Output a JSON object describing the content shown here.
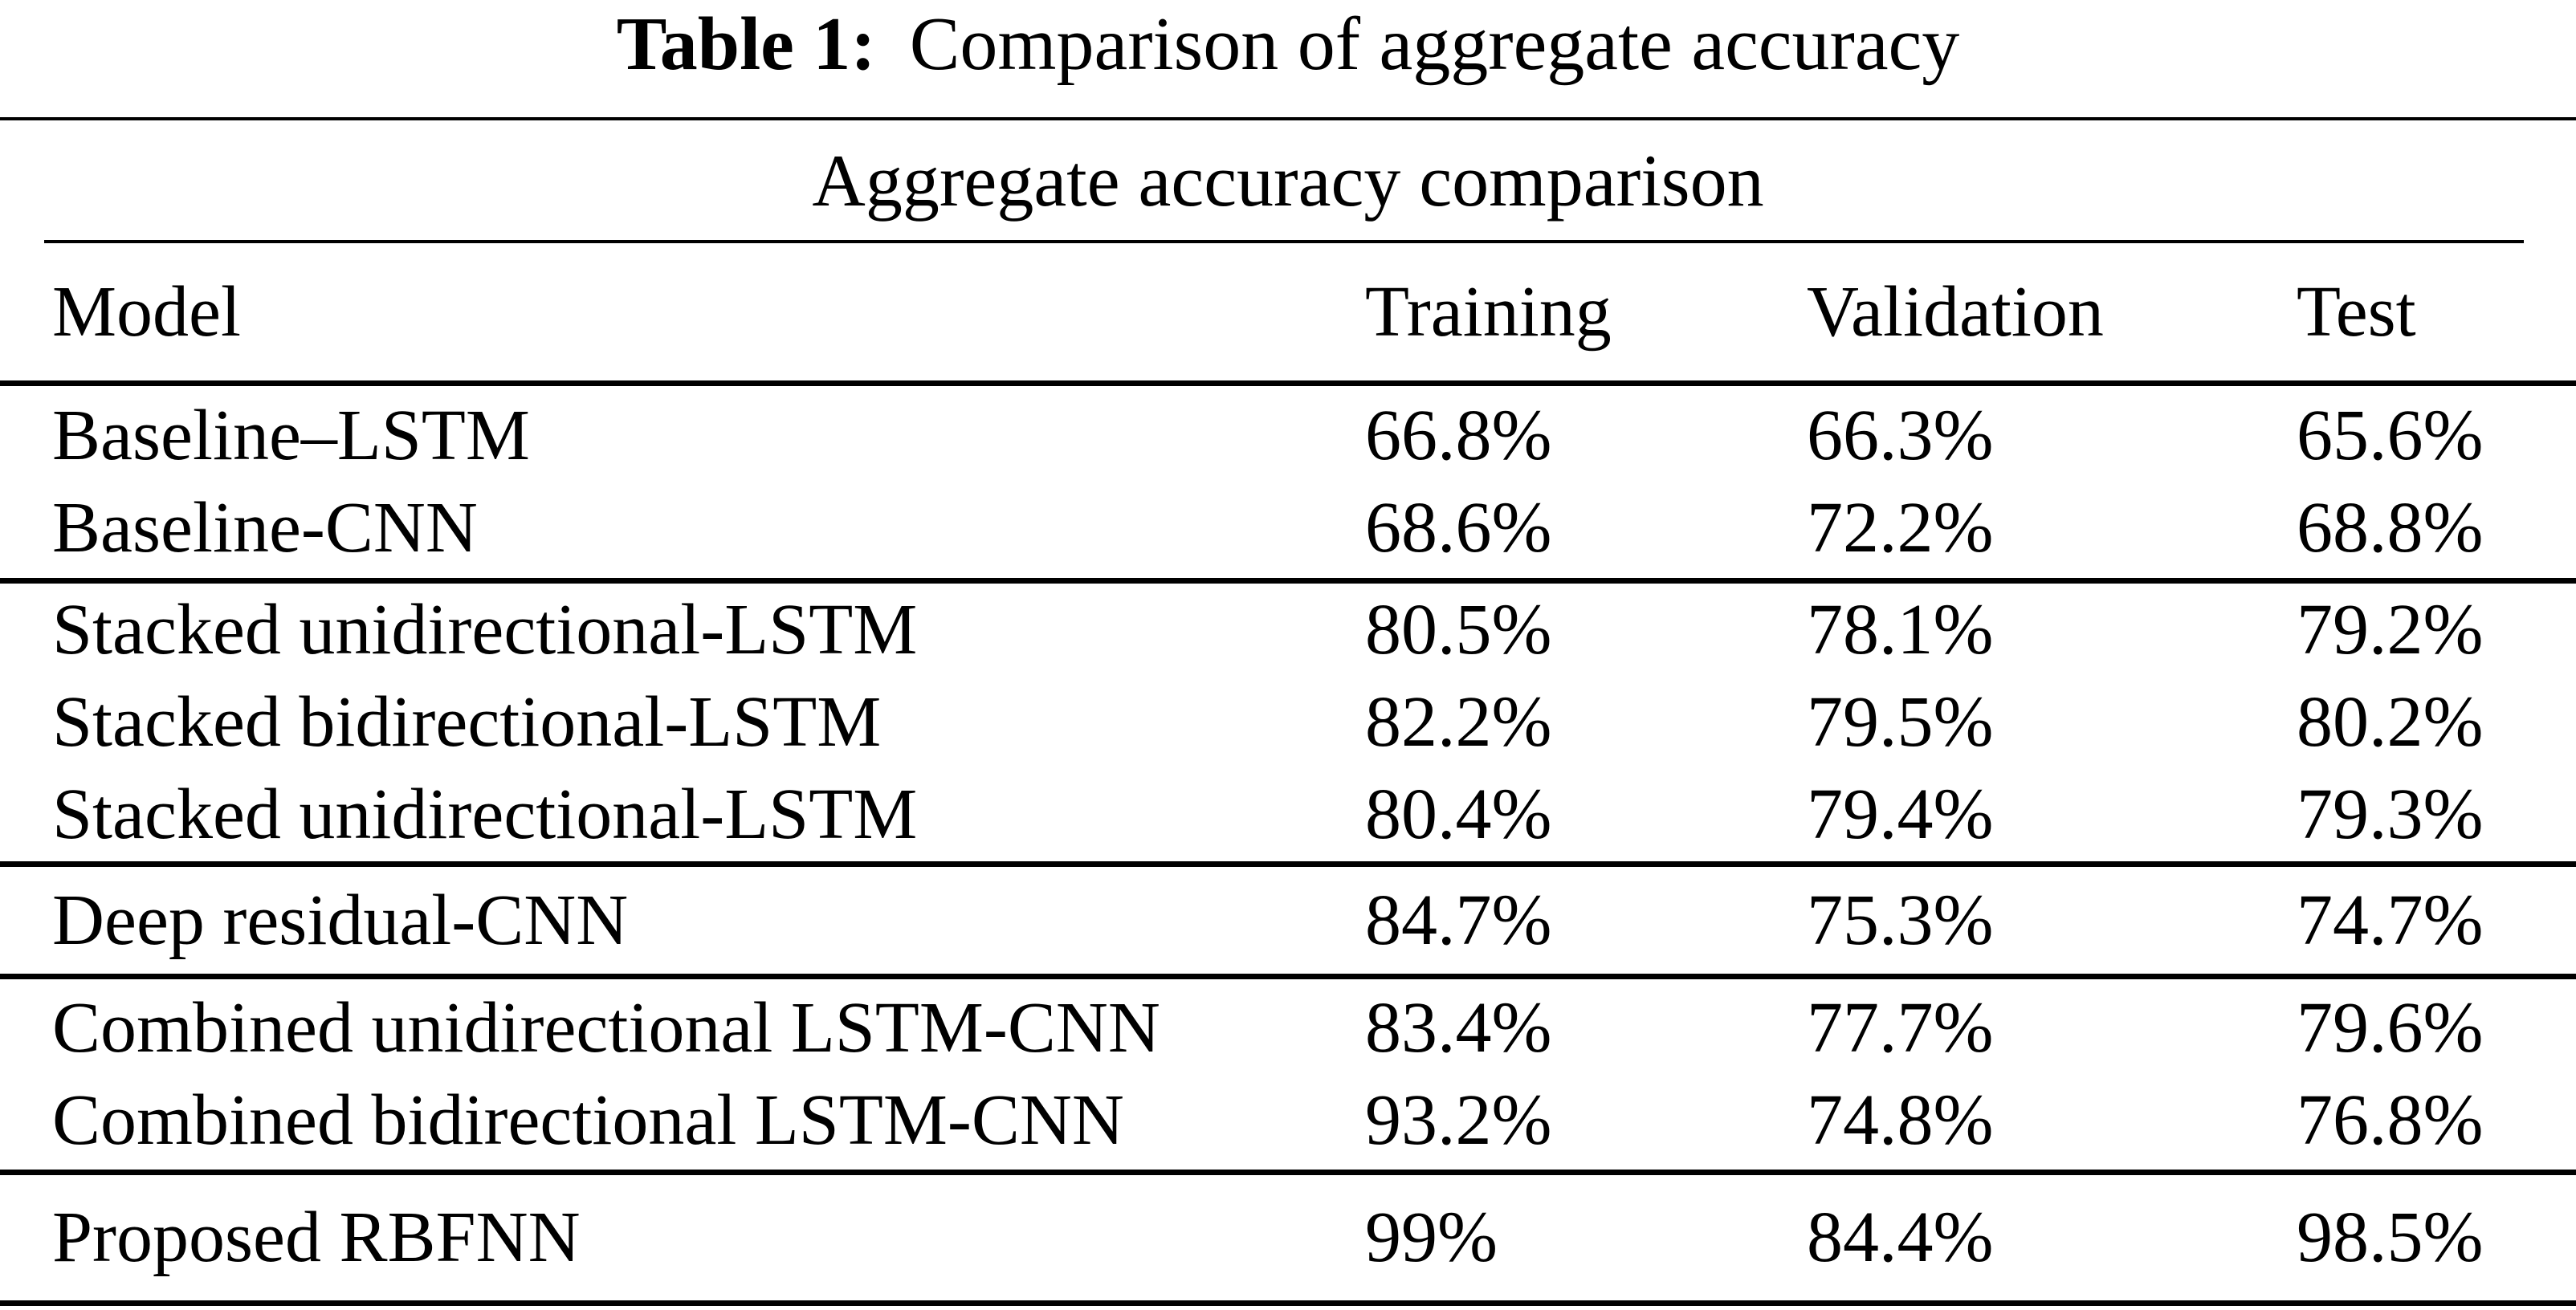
{
  "caption": {
    "label": "Table 1:",
    "text": "Comparison of aggregate accuracy"
  },
  "table": {
    "subtitle": "Aggregate accuracy comparison",
    "columns": {
      "model": "Model",
      "training": "Training",
      "validation": "Validation",
      "test": "Test"
    },
    "groups": [
      {
        "rows": [
          {
            "model": "Baseline–LSTM",
            "training": "66.8%",
            "validation": "66.3%",
            "test": "65.6%"
          },
          {
            "model": "Baseline-CNN",
            "training": "68.6%",
            "validation": "72.2%",
            "test": "68.8%"
          }
        ]
      },
      {
        "rows": [
          {
            "model": "Stacked unidirectional-LSTM",
            "training": "80.5%",
            "validation": "78.1%",
            "test": "79.2%"
          },
          {
            "model": "Stacked bidirectional-LSTM",
            "training": "82.2%",
            "validation": "79.5%",
            "test": "80.2%"
          },
          {
            "model": "Stacked unidirectional-LSTM",
            "training": "80.4%",
            "validation": "79.4%",
            "test": "79.3%"
          }
        ]
      },
      {
        "rows": [
          {
            "model": "Deep residual-CNN",
            "training": "84.7%",
            "validation": "75.3%",
            "test": "74.7%"
          }
        ]
      },
      {
        "rows": [
          {
            "model": "Combined unidirectional LSTM-CNN",
            "training": "83.4%",
            "validation": "77.7%",
            "test": "79.6%"
          },
          {
            "model": "Combined bidirectional LSTM-CNN",
            "training": "93.2%",
            "validation": "74.8%",
            "test": "76.8%"
          }
        ]
      },
      {
        "rows": [
          {
            "model": "Proposed RBFNN",
            "training": "99%",
            "validation": "84.4%",
            "test": "98.5%"
          }
        ]
      }
    ]
  },
  "colors": {
    "background": "#ffffff",
    "text": "#000000",
    "rule": "#000000"
  }
}
